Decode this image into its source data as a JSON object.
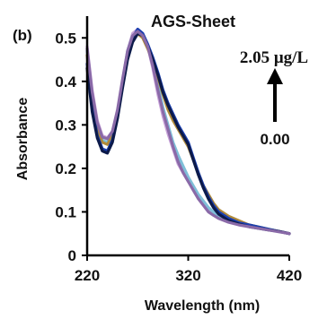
{
  "chart_data": {
    "type": "line",
    "panel_label": "(b)",
    "title": "AGS-Sheet",
    "xlabel": "Wavelength (nm)",
    "ylabel": "Absorbance",
    "xlim": [
      220,
      420
    ],
    "ylim": [
      0,
      0.55
    ],
    "x_ticks": [
      220,
      320,
      420
    ],
    "x_tick_labels": [
      "220",
      "320",
      "420"
    ],
    "y_ticks": [
      0,
      0.1,
      0.2,
      0.3,
      0.4,
      0.5
    ],
    "y_tick_labels": [
      "0",
      "0.1",
      "0.2",
      "0.3",
      "0.4",
      "0.5"
    ],
    "grid": false,
    "legend": "none",
    "annotation": {
      "top": "2.05 μg/L",
      "bottom": "0.00"
    },
    "series": [
      {
        "color": "#c8a2d8",
        "x": [
          220,
          225,
          230,
          235,
          240,
          245,
          250,
          255,
          260,
          265,
          270,
          275,
          280,
          285,
          290,
          295,
          300,
          305,
          310,
          315,
          320,
          325,
          330,
          335,
          340,
          345,
          350,
          360,
          370,
          380,
          390,
          400,
          410,
          420
        ],
        "y": [
          0.48,
          0.38,
          0.31,
          0.275,
          0.27,
          0.285,
          0.33,
          0.4,
          0.47,
          0.51,
          0.52,
          0.51,
          0.48,
          0.43,
          0.37,
          0.32,
          0.28,
          0.245,
          0.21,
          0.19,
          0.17,
          0.155,
          0.135,
          0.12,
          0.105,
          0.095,
          0.09,
          0.08,
          0.075,
          0.07,
          0.065,
          0.06,
          0.055,
          0.05
        ]
      },
      {
        "color": "#7fbfd8",
        "x": [
          220,
          225,
          230,
          235,
          240,
          245,
          250,
          255,
          260,
          265,
          270,
          275,
          280,
          285,
          290,
          295,
          300,
          305,
          310,
          315,
          320,
          325,
          330,
          335,
          340,
          345,
          350,
          360,
          370,
          380,
          390,
          400,
          410,
          420
        ],
        "y": [
          0.47,
          0.37,
          0.3,
          0.265,
          0.26,
          0.28,
          0.33,
          0.4,
          0.47,
          0.505,
          0.515,
          0.505,
          0.48,
          0.44,
          0.39,
          0.34,
          0.3,
          0.26,
          0.23,
          0.205,
          0.18,
          0.16,
          0.14,
          0.125,
          0.11,
          0.1,
          0.09,
          0.08,
          0.075,
          0.07,
          0.065,
          0.06,
          0.055,
          0.05
        ]
      },
      {
        "color": "#b08a3a",
        "x": [
          220,
          225,
          230,
          235,
          240,
          245,
          250,
          255,
          260,
          265,
          270,
          275,
          280,
          285,
          290,
          295,
          300,
          305,
          310,
          315,
          320,
          325,
          330,
          335,
          340,
          345,
          350,
          360,
          370,
          380,
          390,
          400,
          410,
          420
        ],
        "y": [
          0.46,
          0.36,
          0.29,
          0.26,
          0.255,
          0.275,
          0.325,
          0.395,
          0.465,
          0.5,
          0.51,
          0.5,
          0.475,
          0.445,
          0.41,
          0.37,
          0.335,
          0.31,
          0.29,
          0.27,
          0.25,
          0.22,
          0.19,
          0.16,
          0.14,
          0.12,
          0.105,
          0.09,
          0.08,
          0.07,
          0.065,
          0.06,
          0.055,
          0.05
        ]
      },
      {
        "color": "#1a3fb0",
        "x": [
          220,
          225,
          230,
          235,
          240,
          245,
          250,
          255,
          260,
          265,
          270,
          275,
          280,
          285,
          290,
          295,
          300,
          305,
          310,
          315,
          320,
          325,
          330,
          335,
          340,
          345,
          350,
          360,
          370,
          380,
          390,
          400,
          410,
          420
        ],
        "y": [
          0.44,
          0.34,
          0.275,
          0.245,
          0.24,
          0.265,
          0.32,
          0.39,
          0.46,
          0.5,
          0.52,
          0.51,
          0.485,
          0.455,
          0.42,
          0.38,
          0.35,
          0.325,
          0.3,
          0.28,
          0.26,
          0.225,
          0.19,
          0.16,
          0.135,
          0.115,
          0.1,
          0.085,
          0.075,
          0.07,
          0.065,
          0.06,
          0.055,
          0.05
        ]
      },
      {
        "color": "#0c1a4a",
        "x": [
          220,
          225,
          230,
          235,
          240,
          245,
          250,
          255,
          260,
          265,
          270,
          275,
          280,
          285,
          290,
          295,
          300,
          305,
          310,
          315,
          320,
          325,
          330,
          335,
          340,
          345,
          350,
          360,
          370,
          380,
          390,
          400,
          410,
          420
        ],
        "y": [
          0.43,
          0.33,
          0.27,
          0.24,
          0.235,
          0.26,
          0.315,
          0.385,
          0.45,
          0.49,
          0.51,
          0.505,
          0.48,
          0.45,
          0.415,
          0.375,
          0.345,
          0.32,
          0.295,
          0.275,
          0.255,
          0.22,
          0.185,
          0.155,
          0.13,
          0.11,
          0.095,
          0.08,
          0.072,
          0.066,
          0.062,
          0.058,
          0.055,
          0.05
        ]
      },
      {
        "color": "#8a6aa8",
        "x": [
          220,
          225,
          230,
          235,
          240,
          245,
          250,
          255,
          260,
          265,
          270,
          275,
          280,
          285,
          290,
          295,
          300,
          305,
          310,
          315,
          320,
          325,
          330,
          335,
          340,
          345,
          350,
          360,
          370,
          380,
          390,
          400,
          410,
          420
        ],
        "y": [
          0.475,
          0.375,
          0.305,
          0.272,
          0.268,
          0.285,
          0.335,
          0.405,
          0.47,
          0.505,
          0.515,
          0.505,
          0.48,
          0.435,
          0.38,
          0.33,
          0.29,
          0.25,
          0.215,
          0.19,
          0.17,
          0.15,
          0.13,
          0.115,
          0.1,
          0.092,
          0.085,
          0.076,
          0.07,
          0.066,
          0.062,
          0.058,
          0.054,
          0.05
        ]
      }
    ]
  }
}
